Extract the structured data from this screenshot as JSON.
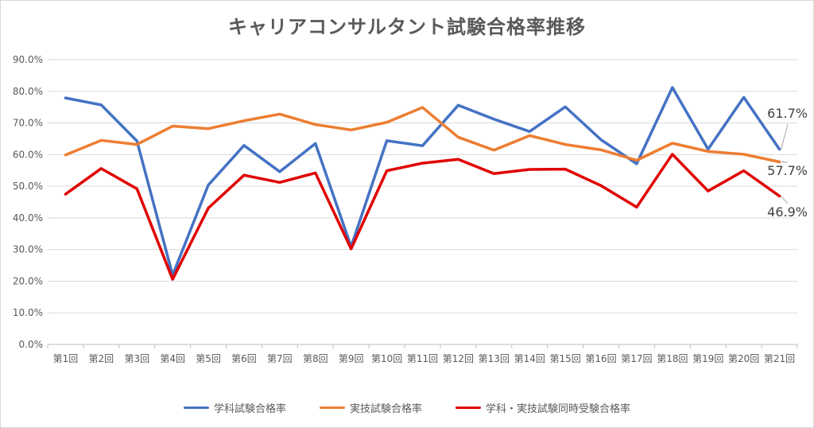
{
  "chart_data": {
    "type": "line",
    "title": "キャリアコンサルタント試験合格率推移",
    "categories": [
      "第1回",
      "第2回",
      "第3回",
      "第4回",
      "第5回",
      "第6回",
      "第7回",
      "第8回",
      "第9回",
      "第10回",
      "第11回",
      "第12回",
      "第13回",
      "第14回",
      "第15回",
      "第16回",
      "第17回",
      "第18回",
      "第19回",
      "第20回",
      "第21回"
    ],
    "ylim": [
      0,
      90
    ],
    "yticks": [
      0,
      10,
      20,
      30,
      40,
      50,
      60,
      70,
      80,
      90
    ],
    "ytick_labels": [
      "0.0%",
      "10.0%",
      "20.0%",
      "30.0%",
      "40.0%",
      "50.0%",
      "60.0%",
      "70.0%",
      "80.0%",
      "90.0%"
    ],
    "grid": true,
    "legend_position": "bottom",
    "series": [
      {
        "name": "学科試験合格率",
        "color": "#4472c4",
        "values": [
          77.9,
          75.7,
          64.3,
          21.9,
          50.4,
          62.9,
          54.6,
          63.5,
          30.9,
          64.4,
          62.8,
          75.6,
          71.2,
          67.3,
          75.1,
          64.7,
          57.1,
          81.2,
          61.7,
          78.1,
          61.7
        ],
        "end_label": "61.7%"
      },
      {
        "name": "実技試験合格率",
        "color": "#ed7d31",
        "values": [
          59.9,
          64.5,
          63.2,
          69.0,
          68.2,
          70.7,
          72.8,
          69.5,
          67.8,
          70.2,
          74.9,
          65.5,
          61.4,
          66.0,
          63.2,
          61.5,
          58.2,
          63.6,
          61.0,
          60.1,
          57.7
        ],
        "end_label": "57.7%"
      },
      {
        "name": "学科・実技試験同時受験合格率",
        "color": "#e00000",
        "values": [
          47.5,
          55.6,
          49.2,
          20.6,
          43.1,
          53.5,
          51.2,
          54.2,
          30.2,
          54.9,
          57.3,
          58.5,
          54.0,
          55.3,
          55.4,
          50.2,
          43.4,
          60.1,
          48.5,
          54.9,
          46.9
        ],
        "end_label": "46.9%"
      }
    ]
  }
}
